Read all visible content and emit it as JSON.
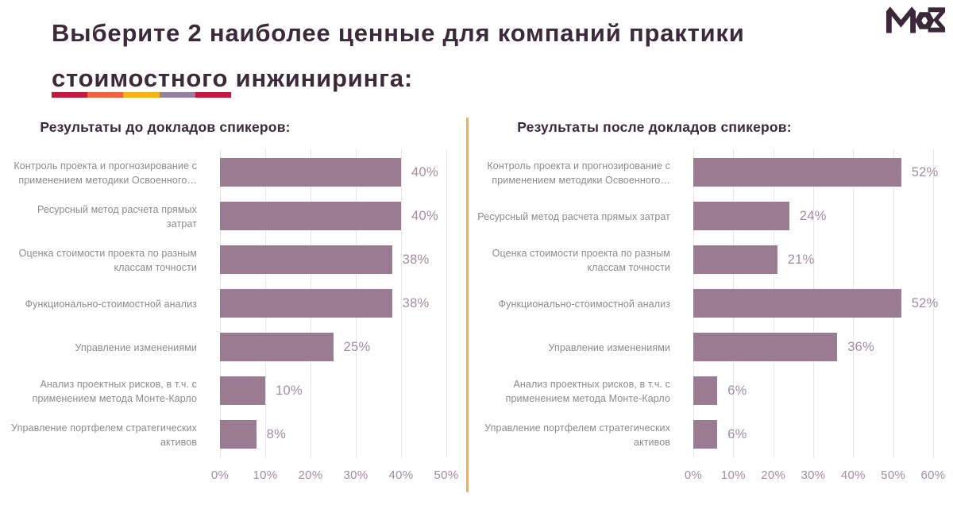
{
  "header": {
    "title": "Выберите 2 наиболее ценные для компаний практики стоимостного инжиниринга:",
    "accent_colors": [
      "#c41a40",
      "#ef6340",
      "#f8b216",
      "#96809f",
      "#c41a40"
    ],
    "logo_text": "МОЗ"
  },
  "colors": {
    "title": "#3c2a3b",
    "bar": "#9a7b92",
    "category_label": "#8b8b8b",
    "value_label": "#a58ba1",
    "gridline": "#eae3e9",
    "divider": "#fbad3e",
    "background": "#ffffff"
  },
  "chart_data": [
    {
      "type": "bar",
      "orientation": "horizontal",
      "title": "Результаты до докладов спикеров:",
      "categories": [
        "Контроль проекта и прогнозирование с применением методики Освоенного…",
        "Ресурсный метод расчета прямых затрат",
        "Оценка стоимости проекта по разным классам точности",
        "Функционально-стоимостной анализ",
        "Управление изменениями",
        "Анализ проектных рисков, в т.ч. с применением метода Монте-Карло",
        "Управление портфелем стратегических активов"
      ],
      "values": [
        40,
        40,
        38,
        38,
        25,
        10,
        8
      ],
      "value_labels": [
        "40%",
        "40%",
        "38%",
        "38%",
        "25%",
        "10%",
        "8%"
      ],
      "xlim": [
        0,
        50
      ],
      "x_ticks": [
        "0%",
        "10%",
        "20%",
        "30%",
        "40%",
        "50%"
      ],
      "tick_percent_step": 10,
      "grid": true,
      "legend": "none"
    },
    {
      "type": "bar",
      "orientation": "horizontal",
      "title": "Результаты после докладов спикеров:",
      "categories": [
        "Контроль проекта и прогнозирование с применением методики Освоенного…",
        "Ресурсный метод расчета прямых затрат",
        "Оценка стоимости проекта по разным классам точности",
        "Функционально-стоимостной анализ",
        "Управление изменениями",
        "Анализ проектных рисков, в т.ч. с применением метода Монте-Карло",
        "Управление портфелем стратегических активов"
      ],
      "values": [
        52,
        24,
        21,
        52,
        36,
        6,
        6
      ],
      "value_labels": [
        "52%",
        "24%",
        "21%",
        "52%",
        "36%",
        "6%",
        "6%"
      ],
      "xlim": [
        0,
        60
      ],
      "x_ticks": [
        "0%",
        "10%",
        "20%",
        "30%",
        "40%",
        "50%",
        "60%"
      ],
      "tick_percent_step": 10,
      "grid": true,
      "legend": "none"
    }
  ]
}
